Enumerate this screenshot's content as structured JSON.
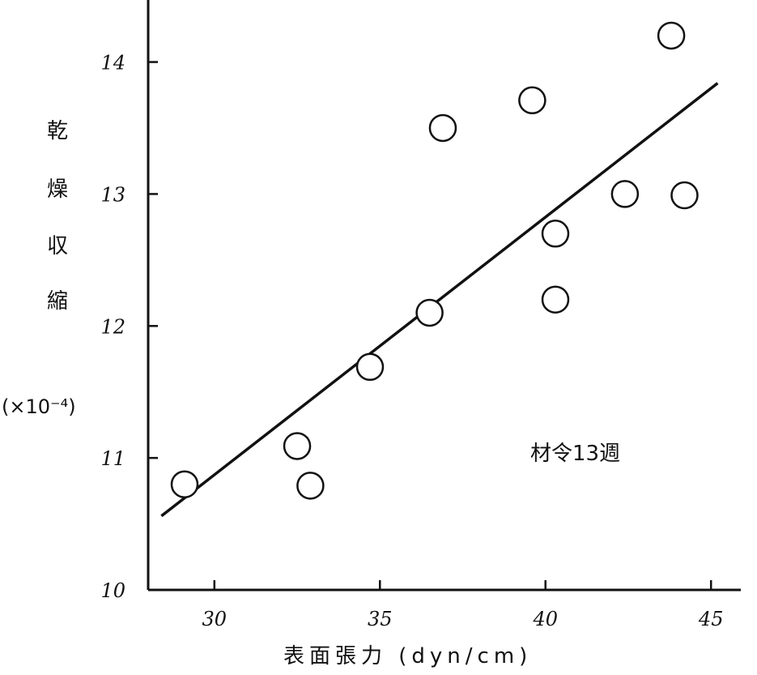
{
  "chart_data": {
    "type": "scatter",
    "xlabel": "表面張力 (dyn/cm)",
    "ylabel_chars": [
      "乾",
      "燥",
      "収",
      "縮"
    ],
    "ylabel_unit": "(×10⁻⁴)",
    "annotation": "材令13週",
    "xlim": [
      28.0,
      45.9
    ],
    "ylim": [
      10,
      14.47
    ],
    "x_ticks": [
      30,
      35,
      40,
      45
    ],
    "y_ticks": [
      10,
      11,
      12,
      13,
      14
    ],
    "x_tick_labels": [
      "30",
      "35",
      "40",
      "45"
    ],
    "y_tick_labels": [
      "10",
      "11",
      "12",
      "13",
      "14"
    ],
    "grid": false,
    "points": [
      {
        "x": 29.1,
        "y": 10.8
      },
      {
        "x": 32.5,
        "y": 11.09
      },
      {
        "x": 32.9,
        "y": 10.79
      },
      {
        "x": 34.7,
        "y": 11.69
      },
      {
        "x": 36.5,
        "y": 12.1
      },
      {
        "x": 36.9,
        "y": 13.5
      },
      {
        "x": 39.6,
        "y": 13.71
      },
      {
        "x": 40.3,
        "y": 12.7
      },
      {
        "x": 40.3,
        "y": 12.2
      },
      {
        "x": 42.4,
        "y": 13.0
      },
      {
        "x": 44.2,
        "y": 12.99
      },
      {
        "x": 43.8,
        "y": 14.2
      }
    ],
    "fit_line": {
      "x": [
        28.4,
        45.2
      ],
      "y": [
        10.56,
        13.84
      ]
    },
    "colors": {
      "ink": "#111111",
      "marker_fill": "#ffffff"
    }
  }
}
